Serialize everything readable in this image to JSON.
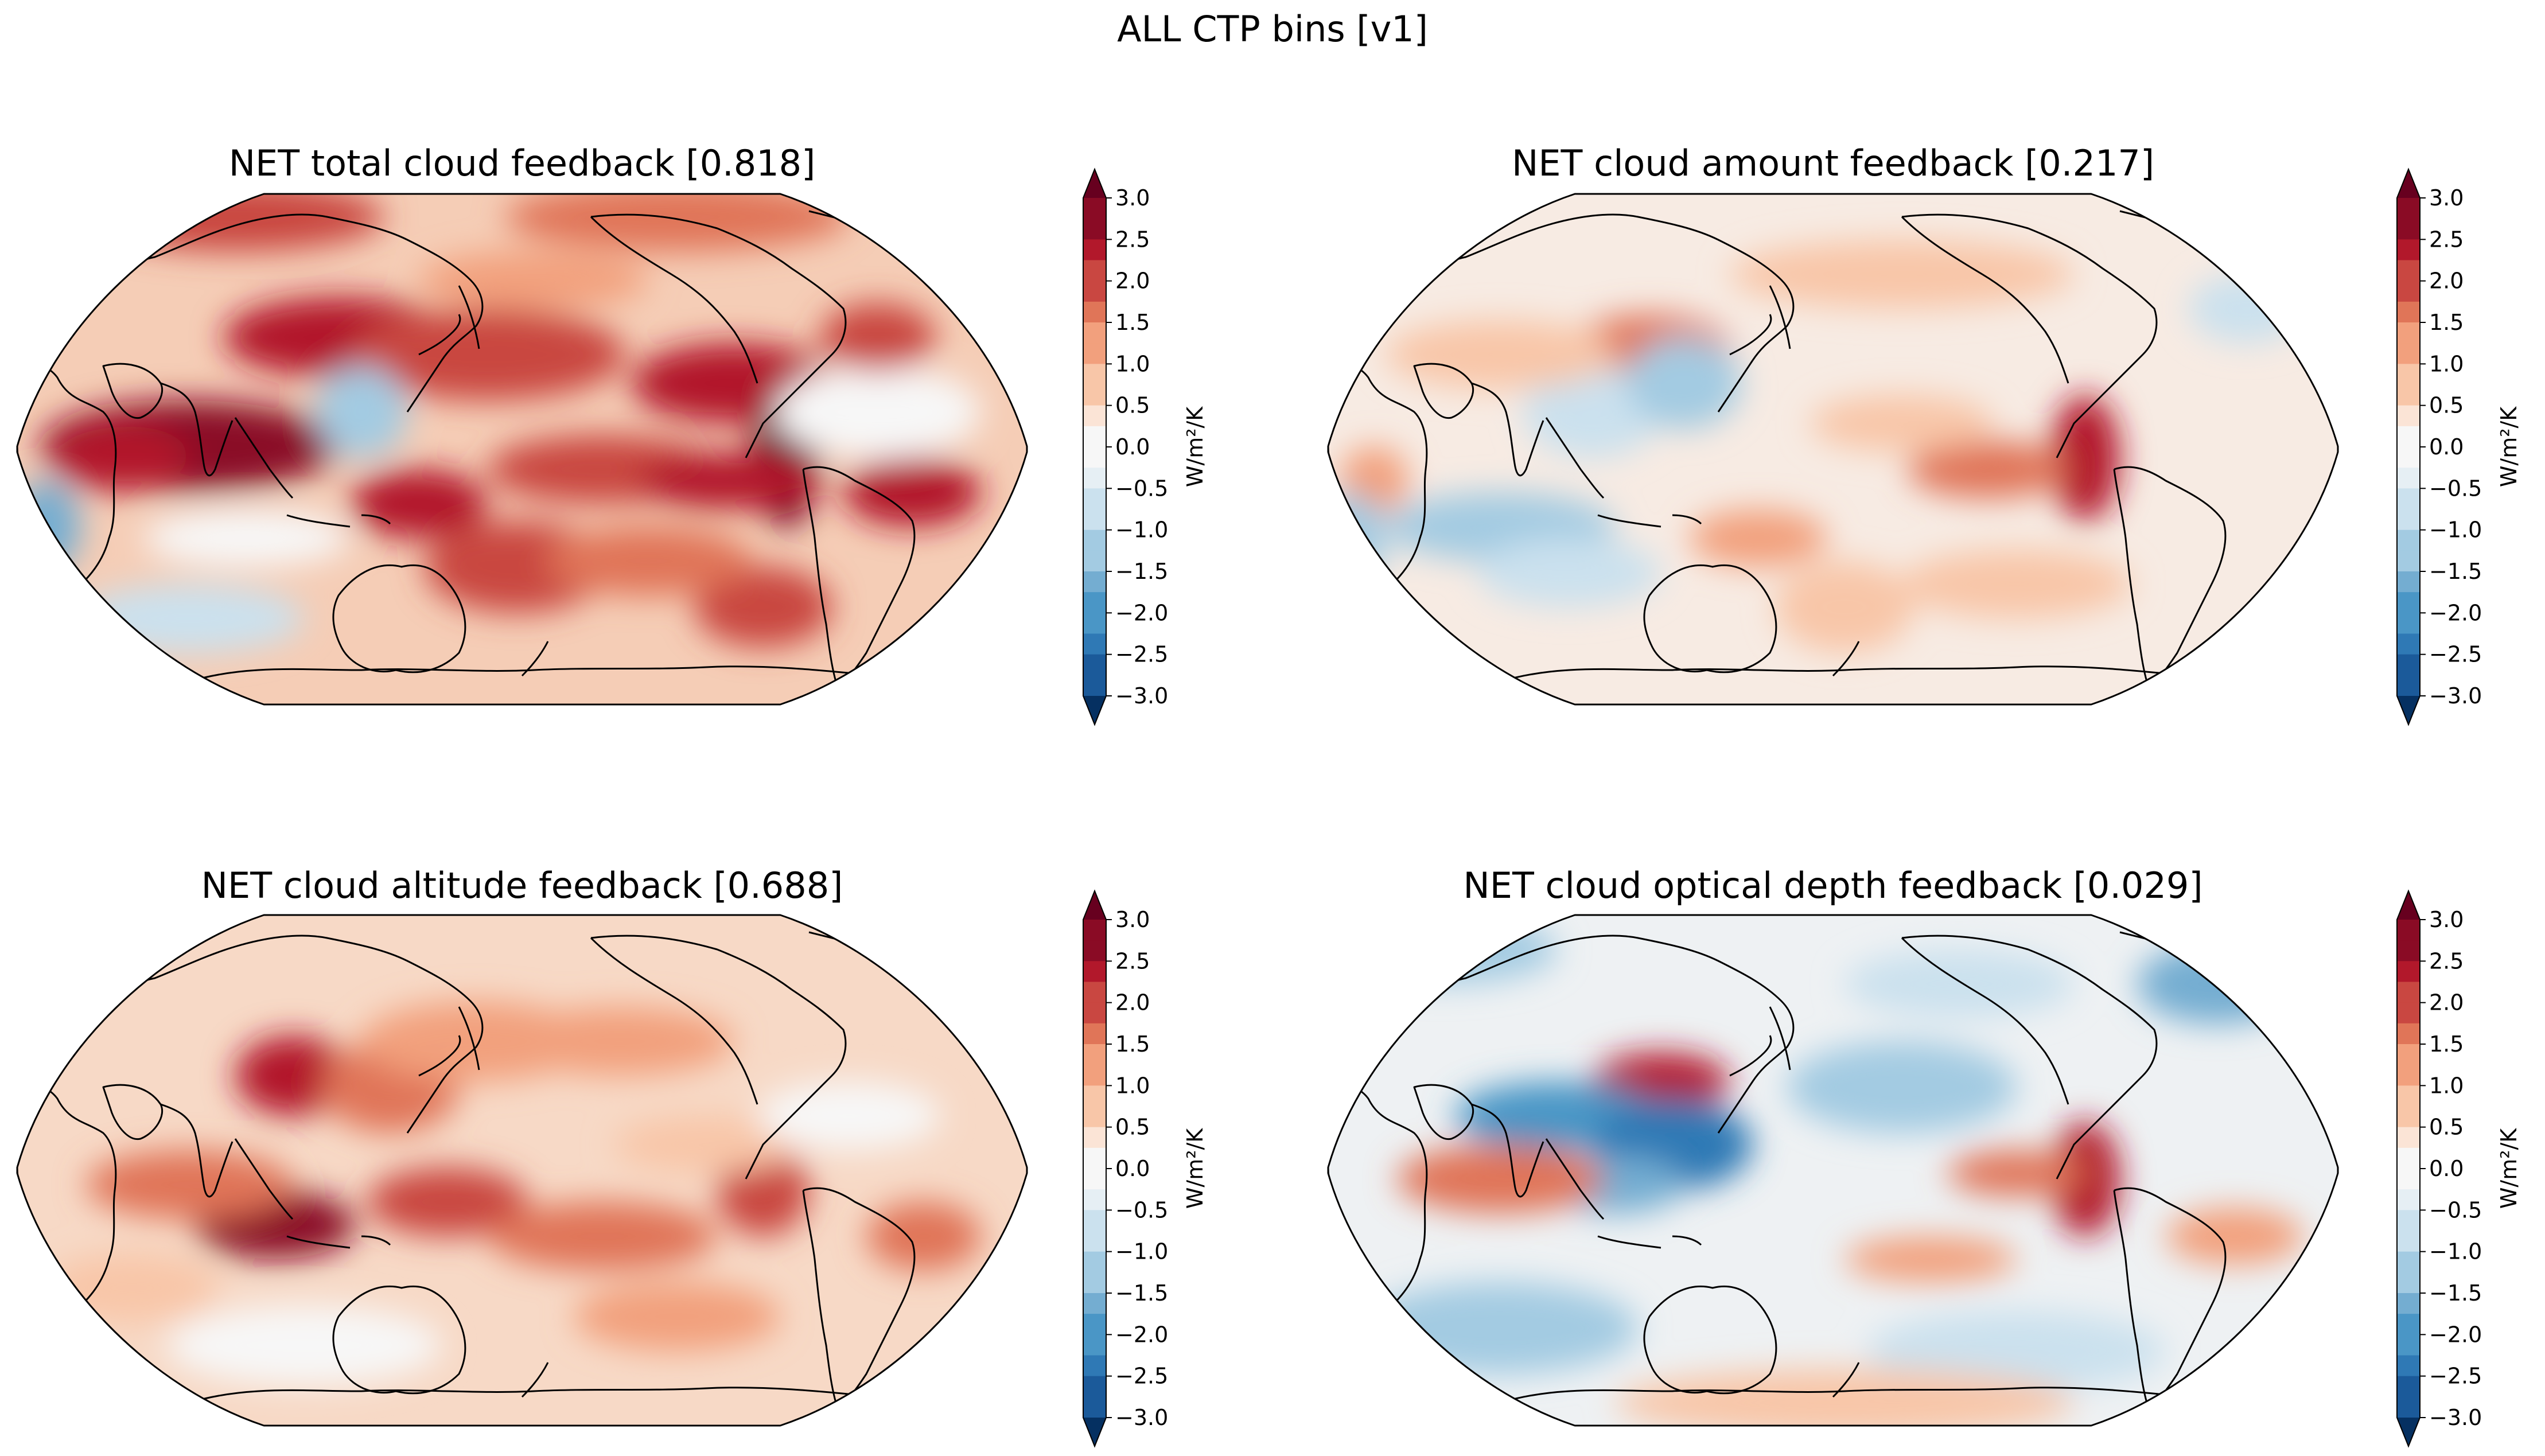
{
  "figure": {
    "suptitle": "ALL CTP bins [v1]"
  },
  "colorbar": {
    "ticks": [
      "3.0",
      "2.5",
      "2.0",
      "1.5",
      "1.0",
      "0.5",
      "0.0",
      "−0.5",
      "−1.0",
      "−1.5",
      "−2.0",
      "−2.5",
      "−3.0"
    ],
    "tick_values": [
      3.0,
      2.5,
      2.0,
      1.5,
      1.0,
      0.5,
      0.0,
      -0.5,
      -1.0,
      -1.5,
      -2.0,
      -2.5,
      -3.0
    ],
    "label": "W/m²/K",
    "range": [
      -3.0,
      3.0
    ],
    "extend": "both",
    "colormap": "RdBu_r",
    "colors": [
      "#053061",
      "#1b5a9a",
      "#2f79b5",
      "#4a96c6",
      "#74add1",
      "#a3cbe2",
      "#cbe1ee",
      "#e6eff4",
      "#f7f7f7",
      "#fbe4d6",
      "#f8c6a8",
      "#f2a07d",
      "#e07558",
      "#c94741",
      "#b2182b",
      "#8a0b25",
      "#67001f"
    ]
  },
  "panels": [
    {
      "id": "total",
      "title": "NET total cloud feedback [0.818]",
      "global_mean": 0.818
    },
    {
      "id": "amount",
      "title": "NET cloud amount feedback [0.217]",
      "global_mean": 0.217
    },
    {
      "id": "altitude",
      "title": "NET cloud altitude feedback [0.688]",
      "global_mean": 0.688
    },
    {
      "id": "optical",
      "title": "NET cloud optical depth feedback [0.029]",
      "global_mean": 0.029
    }
  ],
  "map": {
    "projection": "Robinson",
    "central_longitude": 180,
    "features": [
      "coastlines"
    ]
  }
}
